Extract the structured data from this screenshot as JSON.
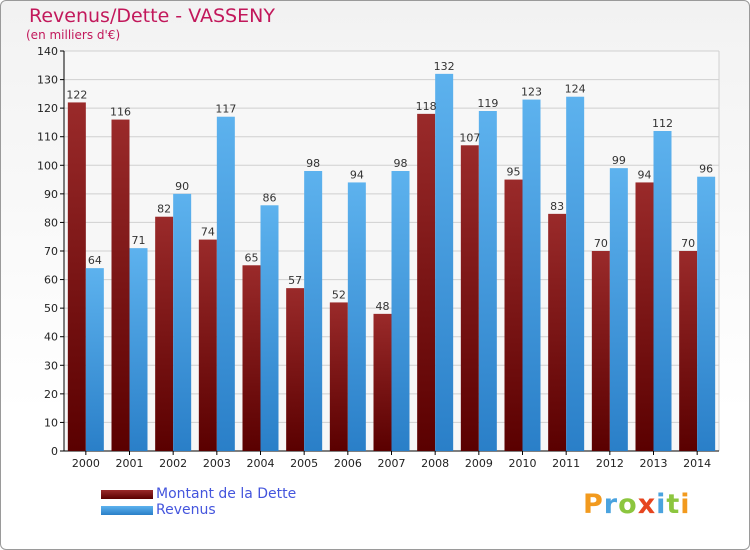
{
  "header": {
    "title": "Revenus/Dette - VASSENY",
    "subtitle": "(en milliers d'€)"
  },
  "logo": {
    "text": "Proxiti",
    "colors": [
      "#f29a1e",
      "#4aa3df",
      "#8cc63f",
      "#e6451f",
      "#4aa3df",
      "#8cc63f",
      "#f29a1e"
    ]
  },
  "colors": {
    "dette": "#7a1010",
    "revenus": "#4ea6e6",
    "title": "#c2185b",
    "legend_text": "#4455dd"
  },
  "chart_data": {
    "type": "bar",
    "title": "Revenus/Dette - VASSENY",
    "subtitle": "(en milliers d'€)",
    "categories": [
      "2000",
      "2001",
      "2002",
      "2003",
      "2004",
      "2005",
      "2006",
      "2007",
      "2008",
      "2009",
      "2010",
      "2011",
      "2012",
      "2013",
      "2014"
    ],
    "series": [
      {
        "name": "Montant de la Dette",
        "values": [
          122,
          116,
          82,
          74,
          65,
          57,
          52,
          48,
          118,
          107,
          95,
          83,
          70,
          94,
          70
        ]
      },
      {
        "name": "Revenus",
        "values": [
          64,
          71,
          90,
          117,
          86,
          98,
          94,
          98,
          132,
          119,
          123,
          124,
          99,
          112,
          96
        ]
      }
    ],
    "yticks": [
      0,
      10,
      20,
      30,
      40,
      50,
      60,
      70,
      80,
      90,
      100,
      110,
      120,
      130,
      140
    ],
    "ylim": [
      0,
      140
    ],
    "grid": true,
    "legend_position": "bottom-left"
  }
}
